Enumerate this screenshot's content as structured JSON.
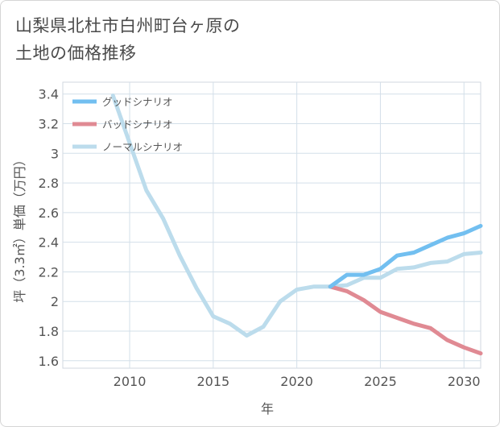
{
  "title_lines": [
    "山梨県北杜市白州町台ヶ原の",
    "土地の価格推移"
  ],
  "chart_data": {
    "type": "line",
    "title": "山梨県北杜市白州町台ヶ原の土地の価格推移",
    "xlabel": "年",
    "ylabel": "坪（3.3㎡）単価（万円）",
    "xlim": [
      2006,
      2031
    ],
    "ylim": [
      1.55,
      3.48
    ],
    "x_ticks": [
      2010,
      2015,
      2020,
      2025,
      2030
    ],
    "y_ticks": [
      1.6,
      1.8,
      2,
      2.2,
      2.4,
      2.6,
      2.8,
      3,
      3.2,
      3.4
    ],
    "grid": true,
    "legend_position": "top-left",
    "series": [
      {
        "name": "グッドシナリオ",
        "color": "#72bff0",
        "x": [
          2022,
          2023,
          2024,
          2025,
          2026,
          2027,
          2028,
          2029,
          2030,
          2031
        ],
        "y": [
          2.1,
          2.18,
          2.18,
          2.22,
          2.31,
          2.33,
          2.38,
          2.43,
          2.46,
          2.51
        ]
      },
      {
        "name": "バッドシナリオ",
        "color": "#e08a93",
        "x": [
          2022,
          2023,
          2024,
          2025,
          2026,
          2027,
          2028,
          2029,
          2030,
          2031
        ],
        "y": [
          2.1,
          2.07,
          2.01,
          1.93,
          1.89,
          1.85,
          1.82,
          1.74,
          1.69,
          1.65
        ]
      },
      {
        "name": "ノーマルシナリオ",
        "color": "#bcdcec",
        "x": [
          2009,
          2010,
          2011,
          2012,
          2013,
          2014,
          2015,
          2016,
          2017,
          2018,
          2019,
          2020,
          2021,
          2022,
          2023,
          2024,
          2025,
          2026,
          2027,
          2028,
          2029,
          2030,
          2031
        ],
        "y": [
          3.39,
          3.07,
          2.75,
          2.56,
          2.31,
          2.09,
          1.9,
          1.85,
          1.77,
          1.83,
          2.0,
          2.08,
          2.1,
          2.1,
          2.11,
          2.16,
          2.16,
          2.22,
          2.23,
          2.26,
          2.27,
          2.32,
          2.33
        ]
      }
    ]
  }
}
